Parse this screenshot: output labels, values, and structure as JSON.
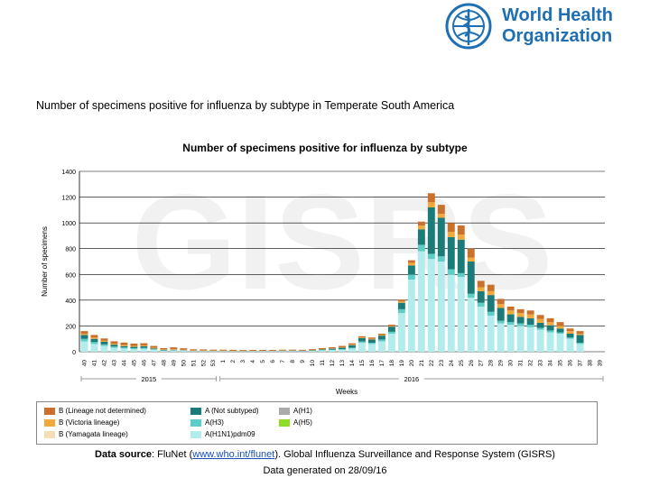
{
  "logo": {
    "line1": "World Health",
    "line2": "Organization",
    "emblem_icon": "who-emblem-icon"
  },
  "slide_title": "Number of specimens positive for influenza by subtype in Temperate South America",
  "watermark": "GISRS",
  "chart_data": {
    "type": "bar",
    "stacked": true,
    "title": "Number of specimens positive for influenza by subtype",
    "xlabel": "Weeks",
    "ylabel": "Number of specimens",
    "ylim": [
      0,
      1400
    ],
    "yticks": [
      0,
      200,
      400,
      600,
      800,
      1000,
      1200,
      1400
    ],
    "grid": true,
    "year_labels": [
      {
        "label": "2015",
        "from": 0,
        "to": 13
      },
      {
        "label": "2016",
        "from": 14,
        "to": 52
      }
    ],
    "categories": [
      "40",
      "41",
      "42",
      "43",
      "44",
      "45",
      "46",
      "47",
      "48",
      "49",
      "50",
      "51",
      "52",
      "53",
      "1",
      "2",
      "3",
      "4",
      "5",
      "6",
      "7",
      "8",
      "9",
      "10",
      "11",
      "12",
      "13",
      "14",
      "15",
      "16",
      "17",
      "18",
      "19",
      "20",
      "21",
      "22",
      "23",
      "24",
      "25",
      "26",
      "27",
      "28",
      "29",
      "30",
      "31",
      "32",
      "33",
      "34",
      "35",
      "36",
      "37",
      "38",
      "39"
    ],
    "series": [
      {
        "name": "A(H1N1)pdm09",
        "color": "#b3ecec",
        "values": [
          80,
          60,
          45,
          30,
          25,
          20,
          22,
          15,
          8,
          10,
          8,
          5,
          5,
          4,
          4,
          3,
          3,
          4,
          4,
          4,
          5,
          5,
          4,
          6,
          10,
          12,
          15,
          25,
          70,
          60,
          80,
          140,
          300,
          560,
          780,
          720,
          700,
          600,
          580,
          420,
          350,
          280,
          220,
          210,
          200,
          190,
          170,
          150,
          140,
          100,
          60,
          0,
          0
        ]
      },
      {
        "name": "A(H3)",
        "color": "#5dcdc8",
        "values": [
          20,
          15,
          12,
          10,
          8,
          8,
          8,
          5,
          3,
          2,
          2,
          1,
          1,
          1,
          1,
          1,
          1,
          1,
          1,
          1,
          1,
          1,
          1,
          2,
          3,
          4,
          6,
          6,
          10,
          10,
          15,
          15,
          30,
          40,
          50,
          40,
          40,
          40,
          30,
          30,
          30,
          30,
          20,
          20,
          20,
          20,
          15,
          15,
          10,
          10,
          10,
          0,
          0
        ]
      },
      {
        "name": "A (Not subtyped)",
        "color": "#1a7b79",
        "values": [
          30,
          25,
          20,
          15,
          10,
          10,
          12,
          5,
          3,
          3,
          2,
          2,
          1,
          1,
          1,
          1,
          1,
          1,
          1,
          1,
          2,
          2,
          2,
          3,
          5,
          8,
          10,
          20,
          25,
          25,
          30,
          40,
          50,
          70,
          120,
          360,
          300,
          250,
          260,
          250,
          90,
          130,
          100,
          60,
          50,
          50,
          40,
          40,
          30,
          30,
          60,
          0,
          0
        ]
      },
      {
        "name": "A(H1)",
        "color": "#aaaaaa",
        "values": [
          0,
          0,
          0,
          0,
          0,
          0,
          0,
          0,
          0,
          0,
          0,
          0,
          0,
          0,
          0,
          0,
          0,
          0,
          0,
          0,
          0,
          0,
          0,
          0,
          0,
          0,
          0,
          0,
          0,
          0,
          0,
          0,
          0,
          0,
          0,
          0,
          0,
          0,
          0,
          0,
          0,
          0,
          0,
          0,
          0,
          0,
          0,
          0,
          0,
          0,
          0,
          0,
          0
        ]
      },
      {
        "name": "A(H5)",
        "color": "#8fdc26",
        "values": [
          0,
          0,
          0,
          0,
          0,
          0,
          0,
          0,
          0,
          0,
          0,
          0,
          0,
          0,
          0,
          0,
          0,
          0,
          0,
          0,
          0,
          0,
          0,
          0,
          0,
          0,
          0,
          0,
          0,
          0,
          0,
          0,
          0,
          0,
          0,
          0,
          0,
          0,
          0,
          0,
          0,
          0,
          0,
          0,
          0,
          0,
          0,
          0,
          0,
          0,
          0,
          0,
          0
        ]
      },
      {
        "name": "B (Yamagata lineage)",
        "color": "#f5deb3",
        "values": [
          0,
          0,
          0,
          0,
          0,
          0,
          0,
          0,
          0,
          0,
          0,
          0,
          0,
          0,
          0,
          0,
          0,
          0,
          0,
          0,
          0,
          0,
          0,
          0,
          0,
          0,
          0,
          0,
          0,
          0,
          0,
          0,
          0,
          0,
          0,
          0,
          0,
          0,
          0,
          0,
          0,
          0,
          0,
          0,
          0,
          0,
          0,
          0,
          0,
          0,
          0,
          0,
          0
        ]
      },
      {
        "name": "B (Victoria lineage)",
        "color": "#f2a93b",
        "values": [
          10,
          10,
          8,
          8,
          8,
          7,
          6,
          5,
          4,
          4,
          3,
          3,
          3,
          2,
          2,
          2,
          1,
          1,
          1,
          1,
          1,
          1,
          1,
          1,
          2,
          3,
          4,
          4,
          5,
          5,
          5,
          5,
          10,
          20,
          30,
          40,
          30,
          40,
          40,
          30,
          30,
          30,
          30,
          30,
          30,
          30,
          30,
          25,
          20,
          20,
          10,
          0,
          0
        ]
      },
      {
        "name": "B (Lineage not determined)",
        "color": "#c9702c",
        "values": [
          20,
          20,
          18,
          18,
          20,
          18,
          18,
          15,
          10,
          15,
          12,
          8,
          8,
          8,
          8,
          8,
          7,
          7,
          7,
          7,
          7,
          7,
          7,
          8,
          8,
          8,
          10,
          10,
          10,
          10,
          10,
          10,
          15,
          20,
          30,
          70,
          70,
          70,
          70,
          70,
          50,
          50,
          40,
          30,
          30,
          30,
          30,
          30,
          30,
          20,
          20,
          0,
          0
        ]
      }
    ]
  },
  "legend_items": [
    {
      "label": "B (Lineage not determined)",
      "color": "#c9702c"
    },
    {
      "label": "A (Not subtyped)",
      "color": "#1a7b79"
    },
    {
      "label": "A(H1)",
      "color": "#aaaaaa"
    },
    {
      "label": "B (Victoria lineage)",
      "color": "#f2a93b"
    },
    {
      "label": "A(H3)",
      "color": "#5dcdc8"
    },
    {
      "label": "A(H5)",
      "color": "#8fdc26"
    },
    {
      "label": "B (Yamagata lineage)",
      "color": "#f5deb3"
    },
    {
      "label": "A(H1N1)pdm09",
      "color": "#b3ecec"
    }
  ],
  "source": {
    "label": "Data source",
    "text_before": ": FluNet (",
    "link": "www.who.int/flunet",
    "text_after": "). Global Influenza Surveillance and Response System (GISRS)"
  },
  "generated": "Data generated on 28/09/16"
}
